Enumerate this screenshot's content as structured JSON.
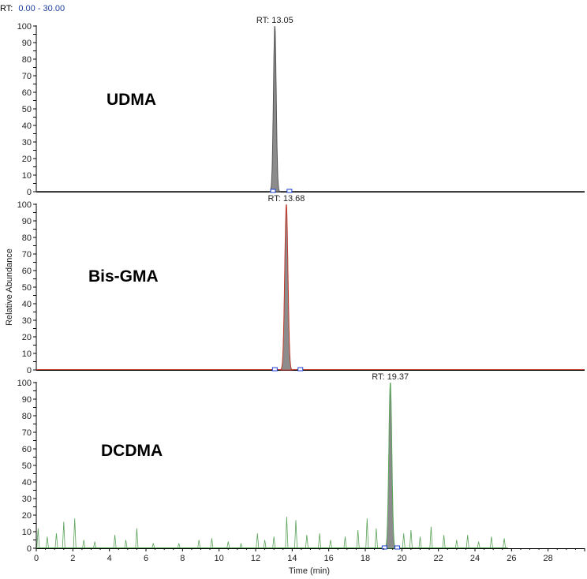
{
  "range_label": {
    "prefix": "RT:",
    "value": "0.00 - 30.00",
    "prefix_color": "#000000",
    "value_color": "#1f3f9f"
  },
  "chart_data": {
    "type": "line",
    "xlabel": "Time (min)",
    "ylabel": "Relative Abundance",
    "xlim": [
      0,
      30
    ],
    "ylim": [
      0,
      100
    ],
    "x_ticks": [
      0,
      2,
      4,
      6,
      8,
      10,
      12,
      14,
      16,
      18,
      20,
      22,
      24,
      26,
      28
    ],
    "y_ticks": [
      0,
      5,
      10,
      15,
      20,
      25,
      30,
      35,
      40,
      45,
      50,
      55,
      60,
      65,
      70,
      75,
      80,
      85,
      90,
      95,
      100
    ],
    "panels": [
      {
        "name": "UDMA",
        "rt_label": "RT: 13.05",
        "peak_rt": 13.05,
        "peak_value": 100,
        "peak_halfwidth": 0.12,
        "line_color": "#555555",
        "fill_color": "#8c8c8c",
        "markers": [
          12.95,
          13.85
        ],
        "noise": []
      },
      {
        "name": "Bis-GMA",
        "rt_label": "RT: 13.68",
        "peak_rt": 13.68,
        "peak_value": 100,
        "peak_halfwidth": 0.14,
        "line_color": "#c0392b",
        "fill_color": "#8c8c8c",
        "markers": [
          13.05,
          14.45
        ],
        "noise": []
      },
      {
        "name": "DCDMA",
        "rt_label": "RT: 19.37",
        "peak_rt": 19.37,
        "peak_value": 100,
        "peak_halfwidth": 0.13,
        "line_color": "#5aa35a",
        "fill_color": "#8c8c8c",
        "markers": [
          19.05,
          19.75
        ],
        "noise": [
          [
            0.1,
            12
          ],
          [
            0.6,
            7
          ],
          [
            1.1,
            9
          ],
          [
            1.5,
            16
          ],
          [
            2.1,
            18
          ],
          [
            2.6,
            5
          ],
          [
            3.2,
            4
          ],
          [
            4.3,
            8
          ],
          [
            4.9,
            5
          ],
          [
            5.5,
            12
          ],
          [
            6.4,
            3
          ],
          [
            7.8,
            3
          ],
          [
            8.9,
            5
          ],
          [
            9.6,
            6
          ],
          [
            10.5,
            4
          ],
          [
            11.2,
            3
          ],
          [
            12.1,
            9
          ],
          [
            12.5,
            5
          ],
          [
            13.0,
            7
          ],
          [
            13.7,
            19
          ],
          [
            14.2,
            17
          ],
          [
            14.8,
            8
          ],
          [
            15.5,
            9
          ],
          [
            16.1,
            5
          ],
          [
            16.9,
            7
          ],
          [
            17.6,
            11
          ],
          [
            18.1,
            18
          ],
          [
            18.6,
            12
          ],
          [
            20.1,
            9
          ],
          [
            20.5,
            11
          ],
          [
            21.0,
            7
          ],
          [
            21.6,
            13
          ],
          [
            22.3,
            8
          ],
          [
            23.0,
            5
          ],
          [
            23.6,
            8
          ],
          [
            24.2,
            4
          ],
          [
            24.9,
            7
          ],
          [
            25.6,
            6
          ]
        ]
      }
    ]
  }
}
